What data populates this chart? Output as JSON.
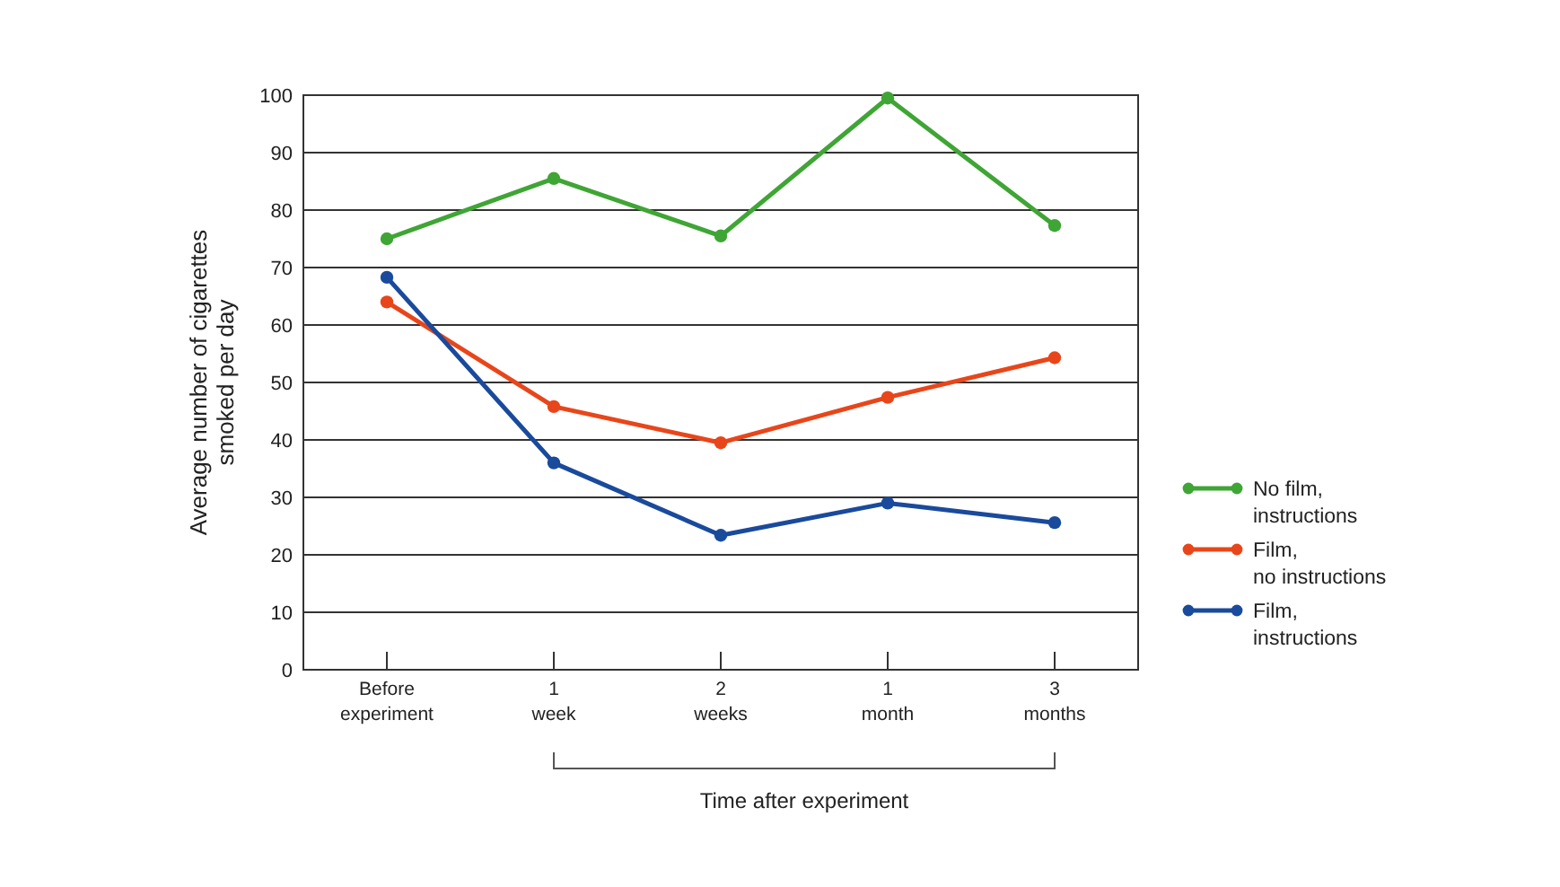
{
  "chart_data": {
    "type": "line",
    "ylabel": "Average number of cigarettes smoked per day",
    "xlabel": "Time after experiment",
    "categories": [
      "Before experiment",
      "1 week",
      "2 weeks",
      "1 month",
      "3 months"
    ],
    "ylim": [
      0,
      100
    ],
    "yticks": [
      0,
      10,
      20,
      30,
      40,
      50,
      60,
      70,
      80,
      90,
      100
    ],
    "grid": "y",
    "legend": "right",
    "marker": "circle",
    "line_style": "solid",
    "series": [
      {
        "name": "No film,\ninstructions",
        "color": "#3fa535",
        "values": [
          75,
          85.5,
          75.5,
          99.5,
          77.3
        ]
      },
      {
        "name": "Film,\nno instructions",
        "color": "#e8461a",
        "values": [
          64,
          45.8,
          39.5,
          47.4,
          54.3
        ]
      },
      {
        "name": "Film,\ninstructions",
        "color": "#1a4a9c",
        "values": [
          68.3,
          36,
          23.4,
          29,
          25.6
        ]
      }
    ]
  }
}
